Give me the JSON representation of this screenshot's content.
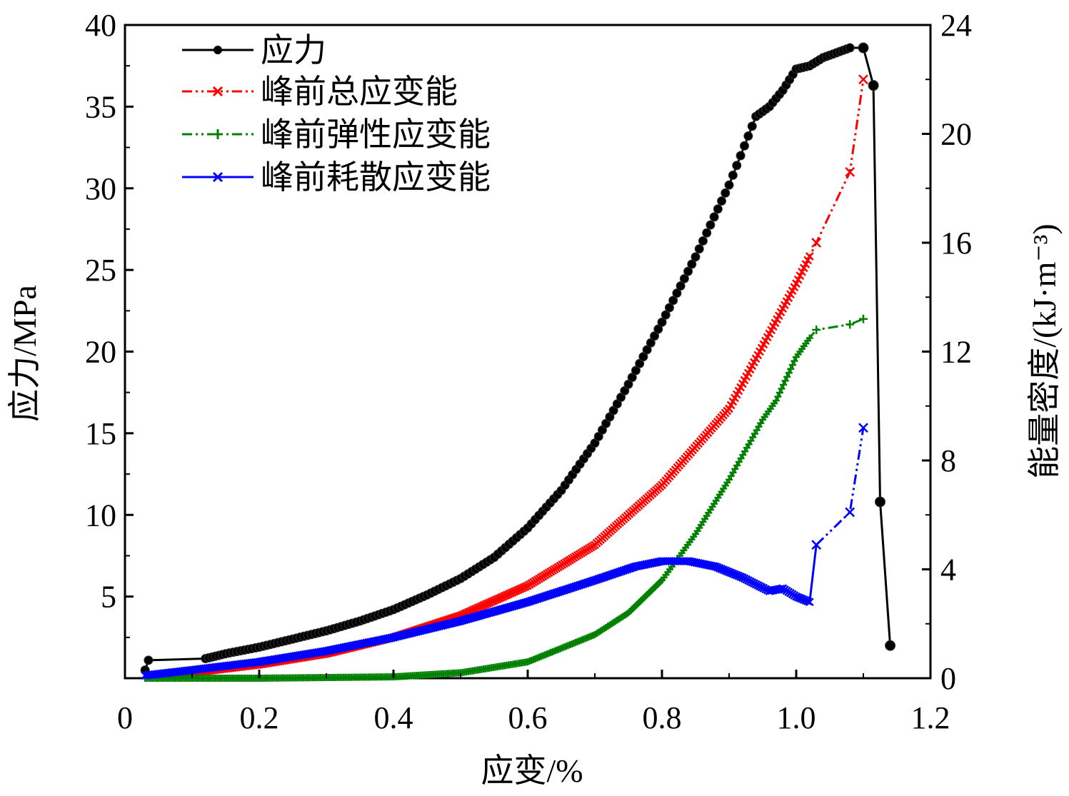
{
  "chart_data": {
    "type": "line",
    "xlabel": "应变/%",
    "ylabel_left": "应力/MPa",
    "ylabel_right": "能量密度/(kJ·m⁻³)",
    "xlim": [
      0,
      1.2
    ],
    "ylim_left": [
      0,
      40
    ],
    "ylim_right": [
      0,
      24
    ],
    "x_ticks": [
      "0",
      "0.2",
      "0.4",
      "0.6",
      "0.8",
      "1.0",
      "1.2"
    ],
    "y_left_ticks": [
      "5",
      "10",
      "15",
      "20",
      "25",
      "30",
      "35",
      "40"
    ],
    "y_right_ticks": [
      "0",
      "4",
      "8",
      "12",
      "16",
      "20",
      "24"
    ],
    "legend_position": "top-left",
    "grid": false,
    "series": [
      {
        "name": "应力",
        "axis": "left",
        "color": "#000000",
        "marker": "circle",
        "line": "solid",
        "x": [
          0.03,
          0.035,
          0.12,
          0.15,
          0.2,
          0.25,
          0.3,
          0.35,
          0.4,
          0.45,
          0.5,
          0.55,
          0.6,
          0.65,
          0.7,
          0.75,
          0.8,
          0.85,
          0.9,
          0.94,
          0.96,
          0.98,
          1.0,
          1.02,
          1.04,
          1.06,
          1.08,
          1.1,
          1.115,
          1.125,
          1.14
        ],
        "y": [
          0.5,
          1.1,
          1.2,
          1.5,
          1.9,
          2.4,
          2.9,
          3.5,
          4.2,
          5.1,
          6.1,
          7.4,
          9.2,
          11.5,
          14.4,
          18.0,
          21.8,
          25.8,
          30.2,
          34.4,
          35.0,
          36.0,
          37.3,
          37.5,
          38.0,
          38.3,
          38.6,
          38.6,
          36.3,
          10.8,
          2.0
        ]
      },
      {
        "name": "峰前总应变能",
        "axis": "right",
        "color": "#ff0000",
        "marker": "x",
        "line": "dash-dot-dot",
        "x": [
          0.03,
          0.1,
          0.2,
          0.3,
          0.4,
          0.5,
          0.6,
          0.7,
          0.8,
          0.9,
          1.0,
          1.02,
          1.03,
          1.08,
          1.1
        ],
        "y": [
          0.1,
          0.2,
          0.5,
          0.9,
          1.5,
          2.3,
          3.4,
          4.9,
          7.1,
          9.9,
          14.5,
          15.5,
          16.0,
          18.6,
          22.0
        ]
      },
      {
        "name": "峰前弹性应变能",
        "axis": "right",
        "color": "#008000",
        "marker": "plus",
        "line": "dash-dot-dot",
        "x": [
          0.03,
          0.2,
          0.4,
          0.5,
          0.6,
          0.7,
          0.75,
          0.8,
          0.85,
          0.9,
          0.95,
          0.97,
          1.0,
          1.02,
          1.03,
          1.08,
          1.1
        ],
        "y": [
          0.0,
          0.0,
          0.05,
          0.2,
          0.6,
          1.6,
          2.4,
          3.6,
          5.3,
          7.3,
          9.5,
          10.2,
          11.8,
          12.5,
          12.8,
          13.0,
          13.2
        ]
      },
      {
        "name": "峰前耗散应变能",
        "axis": "right",
        "color": "#0000ff",
        "marker": "x",
        "line": "solid-then-dash-dot",
        "x": [
          0.03,
          0.1,
          0.2,
          0.3,
          0.4,
          0.5,
          0.6,
          0.7,
          0.76,
          0.8,
          0.84,
          0.88,
          0.92,
          0.96,
          0.98,
          1.0,
          1.02,
          1.03,
          1.08,
          1.1
        ],
        "y": [
          0.1,
          0.3,
          0.6,
          1.0,
          1.5,
          2.1,
          2.8,
          3.6,
          4.1,
          4.3,
          4.3,
          4.1,
          3.7,
          3.2,
          3.3,
          3.0,
          2.8,
          4.9,
          6.1,
          9.2
        ]
      }
    ]
  }
}
